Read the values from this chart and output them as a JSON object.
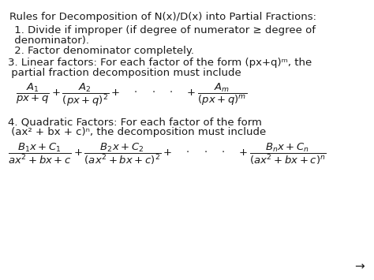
{
  "bg_color": "#ffffff",
  "text_color": "#1a1a1a",
  "title": "Rules for Decomposition of N(x)/D(x) into Partial Fractions:",
  "rule1_line1": " 1. Divide if improper (if degree of numerator ≥ degree of",
  "rule1_line2": " denominator).",
  "rule2": " 2. Factor denominator completely.",
  "rule3_line1": "3. Linear factors: For each factor of the form (px+q)ᵐ, the",
  "rule3_line2": " partial fraction decomposition must include",
  "rule4_line1": "4. Quadratic Factors: For each factor of the form",
  "rule4_line2": " (ax² + bx + c)ⁿ, the decomposition must include",
  "arrow": "→",
  "figsize": [
    4.74,
    3.55
  ],
  "dpi": 100
}
